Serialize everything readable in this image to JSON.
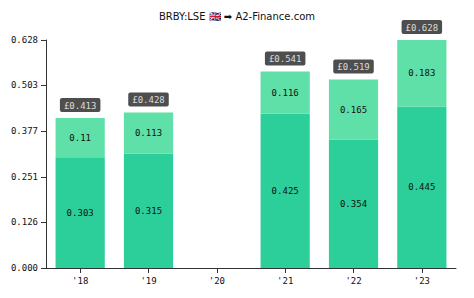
{
  "chart_data": {
    "type": "bar",
    "title": "BRBY:LSE 🇬🇧 ➡ A2-Finance.com",
    "categories": [
      "'18",
      "'19",
      "'20",
      "'21",
      "'22",
      "'23"
    ],
    "series": [
      {
        "color": "#2ccf9a",
        "values": [
          0.303,
          0.315,
          null,
          0.425,
          0.354,
          0.445
        ]
      },
      {
        "color": "#5fe0a8",
        "values": [
          0.11,
          0.113,
          null,
          0.116,
          0.165,
          0.183
        ]
      }
    ],
    "totals": [
      0.413,
      0.428,
      null,
      0.541,
      0.519,
      0.628
    ],
    "total_labels": [
      "£0.413",
      "£0.428",
      null,
      "£0.541",
      "£0.519",
      "£0.628"
    ],
    "ylim": [
      0,
      0.628
    ],
    "yticks": [
      {
        "value": 0,
        "label": "0.000"
      },
      0.126,
      0.251,
      0.377,
      0.503,
      0.628
    ],
    "stacked": true,
    "data_labels": true,
    "grid": false
  }
}
